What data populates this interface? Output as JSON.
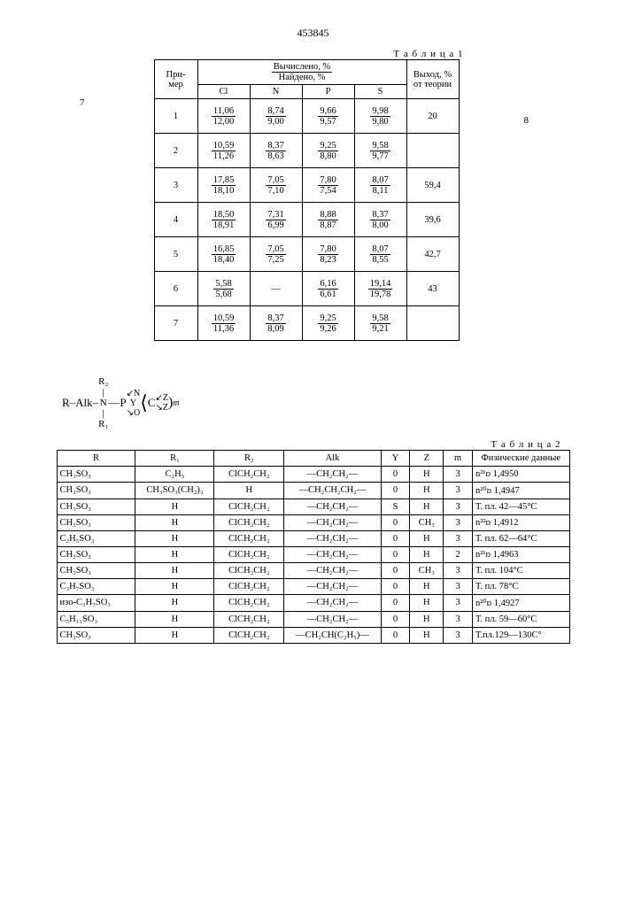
{
  "page_number": "453845",
  "col_left": "7",
  "col_right": "8",
  "table1": {
    "caption": "Т а б л и ц а 1",
    "head": {
      "example": "При-\nмер",
      "calc_found": "Вычислено, %",
      "found": "Найдено, %",
      "Cl": "Cl",
      "N": "N",
      "P": "P",
      "S": "S",
      "yield": "Выход,\n% от\nтеории"
    },
    "rows": [
      {
        "n": "1",
        "Cl": [
          "11,06",
          "12,00"
        ],
        "N": [
          "8,74",
          "9,00"
        ],
        "P": [
          "9,66",
          "9,57"
        ],
        "S": [
          "9,98",
          "9,80"
        ],
        "y": "20"
      },
      {
        "n": "2",
        "Cl": [
          "10,59",
          "11,26"
        ],
        "N": [
          "8,37",
          "8,63"
        ],
        "P": [
          "9,25",
          "8,80"
        ],
        "S": [
          "9,58",
          "9,77"
        ],
        "y": ""
      },
      {
        "n": "3",
        "Cl": [
          "17,85",
          "18,10"
        ],
        "N": [
          "7,05",
          "7,10"
        ],
        "P": [
          "7,80",
          "7,54"
        ],
        "S": [
          "8,07",
          "8,11"
        ],
        "y": "59,4"
      },
      {
        "n": "4",
        "Cl": [
          "18,50",
          "18,91"
        ],
        "N": [
          "7,31",
          "6,99"
        ],
        "P": [
          "8,88",
          "8,87"
        ],
        "S": [
          "8,37",
          "8,00"
        ],
        "y": "39,6"
      },
      {
        "n": "5",
        "Cl": [
          "16,85",
          "18,40"
        ],
        "N": [
          "7,05",
          "7,25"
        ],
        "P": [
          "7,80",
          "8,23"
        ],
        "S": [
          "8,07",
          "8,55"
        ],
        "y": "42,7"
      },
      {
        "n": "6",
        "Cl": [
          "5,58",
          "5,68"
        ],
        "N": [
          "—",
          ""
        ],
        "P": [
          "6,16",
          "6,61"
        ],
        "S": [
          "19,14",
          "19,78"
        ],
        "y": "43"
      },
      {
        "n": "7",
        "Cl": [
          "10,59",
          "11,36"
        ],
        "N": [
          "8,37",
          "8,09"
        ],
        "P": [
          "9,25",
          "9,26"
        ],
        "S": [
          "9,58",
          "9,21"
        ],
        "y": ""
      }
    ]
  },
  "formula": {
    "R": "R",
    "Alk": "Alk",
    "N": "N",
    "R1": "R₁",
    "R2": "R₂",
    "P": "P",
    "Y": "Y",
    "O": "O",
    "C": "C",
    "Z": "Z",
    "m": "m"
  },
  "table2": {
    "caption": "Т а б л и ц а 2",
    "head": {
      "R": "R",
      "R1": "R₁",
      "R2": "R₂",
      "Alk": "Alk",
      "Y": "Y",
      "Z": "Z",
      "m": "m",
      "phys": "Физические\nданные"
    },
    "rows": [
      {
        "R": "CH₃SO₃",
        "R1": "C₂H₅",
        "R2": "ClCH₂CH₂",
        "Alk": "—CH₂CH₂—",
        "Y": "0",
        "Z": "H",
        "m": "3",
        "phys": "n²¹ᴅ 1,4950"
      },
      {
        "R": "CH₃SO₃",
        "R1": "CH₃SO₃(CH₂)₃",
        "R2": "H",
        "Alk": "—CH₂CH₂CH₂—",
        "Y": "0",
        "Z": "H",
        "m": "3",
        "phys": "n²⁰ᴅ 1,4947"
      },
      {
        "R": "CH₃SO₃",
        "R1": "H",
        "R2": "ClCH₂CH₂",
        "Alk": "—CH₂CH₂—",
        "Y": "S",
        "Z": "H",
        "m": "3",
        "phys": "Т. пл. 42—45°C"
      },
      {
        "R": "CH₃SO₃",
        "R1": "H",
        "R2": "ClCH₂CH₂",
        "Alk": "—CH₂CH₂—",
        "Y": "0",
        "Z": "CH₃",
        "m": "3",
        "phys": "n²²ᴅ 1,4912"
      },
      {
        "R": "C₂H₅SO₃",
        "R1": "H",
        "R2": "ClCH₂CH₂",
        "Alk": "—CH₂CH₂—",
        "Y": "0",
        "Z": "H",
        "m": "3",
        "phys": "Т. пл. 62—64°C"
      },
      {
        "R": "CH₃SO₃",
        "R1": "H",
        "R2": "ClCH₂CH₂",
        "Alk": "—CH₂CH₂—",
        "Y": "0",
        "Z": "H",
        "m": "2",
        "phys": "n²¹ᴅ 1,4963"
      },
      {
        "R": "CH₃SO₃",
        "R1": "H",
        "R2": "ClCH₂CH₂",
        "Alk": "—CH₂CH₂—",
        "Y": "0",
        "Z": "CH₃",
        "m": "3",
        "phys": "Т. пл. 104°C"
      },
      {
        "R": "C₃H₇SO₃",
        "R1": "H",
        "R2": "ClCH₂CH₂",
        "Alk": "—CH₂CH₂—",
        "Y": "0",
        "Z": "H",
        "m": "3",
        "phys": "Т. пл. 78°C"
      },
      {
        "R": "изо-C₃H₇SO₃",
        "R1": "H",
        "R2": "ClCH₂CH₂",
        "Alk": "—CH₂CH₂—",
        "Y": "0",
        "Z": "H",
        "m": "3",
        "phys": "n²⁰ᴅ 1,4927"
      },
      {
        "R": "C₅H₁₁SO₃",
        "R1": "H",
        "R2": "ClCH₂CH₂",
        "Alk": "—CH₂CH₂—",
        "Y": "0",
        "Z": "H",
        "m": "3",
        "phys": "Т. пл. 59—60°C"
      },
      {
        "R": "CH₃SO₃",
        "R1": "H",
        "R2": "ClCH₂CH₂",
        "Alk": "—CH₂CH(C₂H₅)—",
        "Y": "0",
        "Z": "H",
        "m": "3",
        "phys": "Т.пл.129—130С°"
      }
    ]
  }
}
